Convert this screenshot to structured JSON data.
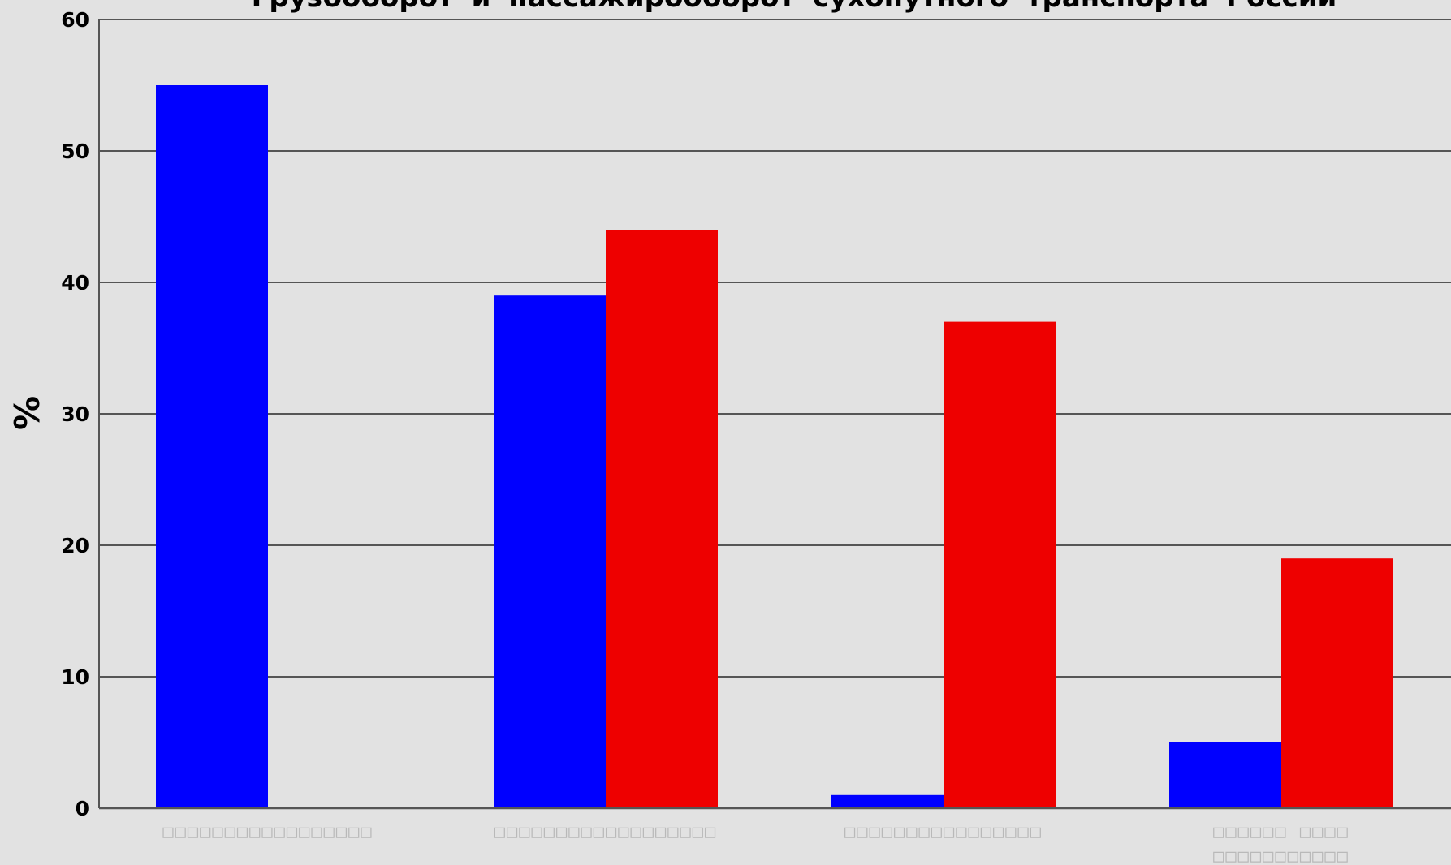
{
  "chart_data": {
    "type": "bar",
    "title": "Грузооборот и пассажирооборот сухопутного транспорта России",
    "xlabel": "",
    "ylabel": "%",
    "ylim": [
      0,
      60
    ],
    "yticks": [
      0,
      10,
      20,
      30,
      40,
      50,
      60
    ],
    "grid": true,
    "legend": "none",
    "categories": [
      "□□□□□□□□□□□□□□□□□",
      "□□□□□□□□□□□□□□□□□□",
      "□□□□□□□□□□□□□□□□",
      "□□□□□□ □□□□\n□□□□□□□□□□□"
    ],
    "series": [
      {
        "values": [
          55,
          39,
          1,
          5
        ],
        "color": "#0000ff"
      },
      {
        "values": [
          0,
          44,
          37,
          19
        ],
        "color": "#ee0000"
      }
    ],
    "colors": {
      "background": "#e2e2e2",
      "gridline": "#555555",
      "axis": "#555555",
      "category_label": "#b9b9b9"
    }
  }
}
